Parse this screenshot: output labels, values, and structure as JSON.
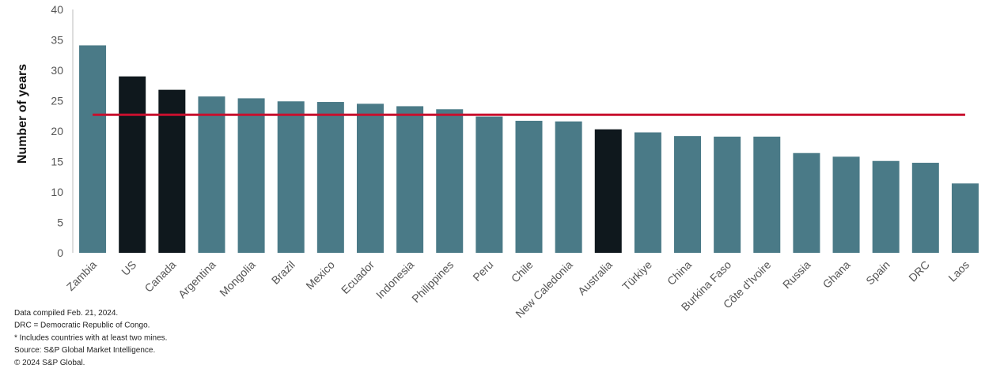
{
  "chart_data": {
    "type": "bar",
    "y_label": "Number of years",
    "categories": [
      "Zambia",
      "US",
      "Canada",
      "Argentina",
      "Mongolia",
      "Brazil",
      "Mexico",
      "Ecuador",
      "Indonesia",
      "Philippines",
      "Peru",
      "Chile",
      "New Caledonia",
      "Australia",
      "Türkiye",
      "China",
      "Burkina Faso",
      "Côte d'Ivoire",
      "Russia",
      "Ghana",
      "Spain",
      "DRC",
      "Laos"
    ],
    "values": [
      34.1,
      29.0,
      26.8,
      25.7,
      25.4,
      24.9,
      24.8,
      24.5,
      24.1,
      23.6,
      22.4,
      21.7,
      21.6,
      20.3,
      19.8,
      19.2,
      19.1,
      19.1,
      16.4,
      15.8,
      15.1,
      14.8,
      11.4
    ],
    "colors": [
      "#4a7a87",
      "#0f181d",
      "#0f181d",
      "#4a7a87",
      "#4a7a87",
      "#4a7a87",
      "#4a7a87",
      "#4a7a87",
      "#4a7a87",
      "#4a7a87",
      "#4a7a87",
      "#4a7a87",
      "#4a7a87",
      "#0f181d",
      "#4a7a87",
      "#4a7a87",
      "#4a7a87",
      "#4a7a87",
      "#4a7a87",
      "#4a7a87",
      "#4a7a87",
      "#4a7a87",
      "#4a7a87"
    ],
    "reference_line": {
      "value": 22.7,
      "color": "#c8102e"
    },
    "ylim": [
      0,
      40
    ],
    "yticks": [
      0,
      5,
      10,
      15,
      20,
      25,
      30,
      35,
      40
    ],
    "grid": false
  },
  "notes": [
    "Data compiled Feb. 21, 2024.",
    "DRC = Democratic Republic of Congo.",
    "* Includes countries with at least two mines.",
    "Source: S&P Global Market Intelligence.",
    "© 2024 S&P Global."
  ]
}
